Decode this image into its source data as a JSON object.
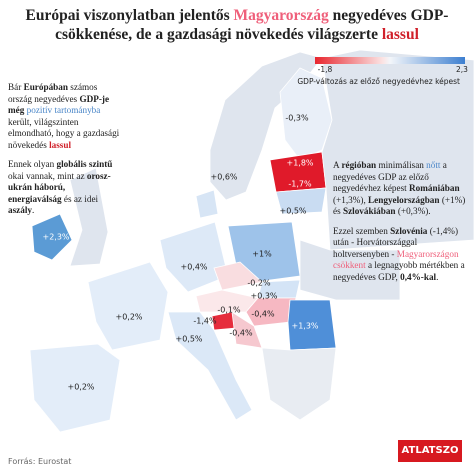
{
  "title": [
    {
      "text": "Európai viszonylatban jelentős "
    },
    {
      "text": "Magyarország",
      "style": "pink"
    },
    {
      "text": " negyedéves GDP-csökkenése, de a gazdasági növekedés világszerte "
    },
    {
      "text": "lassul",
      "style": "red"
    }
  ],
  "legend": {
    "min": "-1,8",
    "max": "2,3",
    "caption": "GDP-változás az előző negyedévhez képest"
  },
  "left_text": [
    [
      {
        "text": "Bár "
      },
      {
        "text": "Európában",
        "style": "b"
      },
      {
        "text": " számos ország negyedéves "
      },
      {
        "text": "GDP-je még",
        "style": "b"
      },
      {
        "text": " "
      },
      {
        "text": "pozitív tartományba",
        "style": "blue"
      },
      {
        "text": " került, világszinten elmondható, hogy a gazdasági növekedés "
      },
      {
        "text": "lassul",
        "style": "red"
      }
    ],
    [
      {
        "text": "Ennek olyan "
      },
      {
        "text": "globális szintű",
        "style": "b"
      },
      {
        "text": " okai vannak, mint az "
      },
      {
        "text": "orosz-ukrán háború, energiaválság",
        "style": "b"
      },
      {
        "text": " és az idei "
      },
      {
        "text": "aszály",
        "style": "b"
      },
      {
        "text": "."
      }
    ]
  ],
  "right_text": [
    [
      {
        "text": "A "
      },
      {
        "text": "régióban",
        "style": "b"
      },
      {
        "text": " minimálisan "
      },
      {
        "text": "nőtt",
        "style": "blue"
      },
      {
        "text": " a negyedéves GDP az előző negyedévhez képest "
      },
      {
        "text": "Romániában",
        "style": "b"
      },
      {
        "text": " (+1,3%), "
      },
      {
        "text": "Lengyelországban",
        "style": "b"
      },
      {
        "text": " (+1%) és "
      },
      {
        "text": "Szlovákiában",
        "style": "b"
      },
      {
        "text": " (+0,3%)."
      }
    ],
    [
      {
        "text": "Ezzel szemben "
      },
      {
        "text": "Szlovénia",
        "style": "b"
      },
      {
        "text": " (-1,4%) után - Horvátországgal holtversenyben - "
      },
      {
        "text": "Magyarországon csökkent",
        "style": "pink"
      },
      {
        "text": " a legnagyobb mértékben a negyedéves GDP, "
      },
      {
        "text": "0,4%-kal",
        "style": "b"
      },
      {
        "text": "."
      }
    ]
  ],
  "map_labels": [
    "-0,3%",
    "+1,8%",
    "-1,7%",
    "+0,5%",
    "+0,6%",
    "+2,3%",
    "+1%",
    "+0,4%",
    "-0,2%",
    "+0,3%",
    "-0,1%",
    "-1,4%",
    "-0,4%",
    "-0,4%",
    "+1,3%",
    "+0,2%",
    "+0,5%",
    "+0,2%"
  ],
  "source": "Forrás: Eurostat",
  "logo": "ATLATSZO"
}
